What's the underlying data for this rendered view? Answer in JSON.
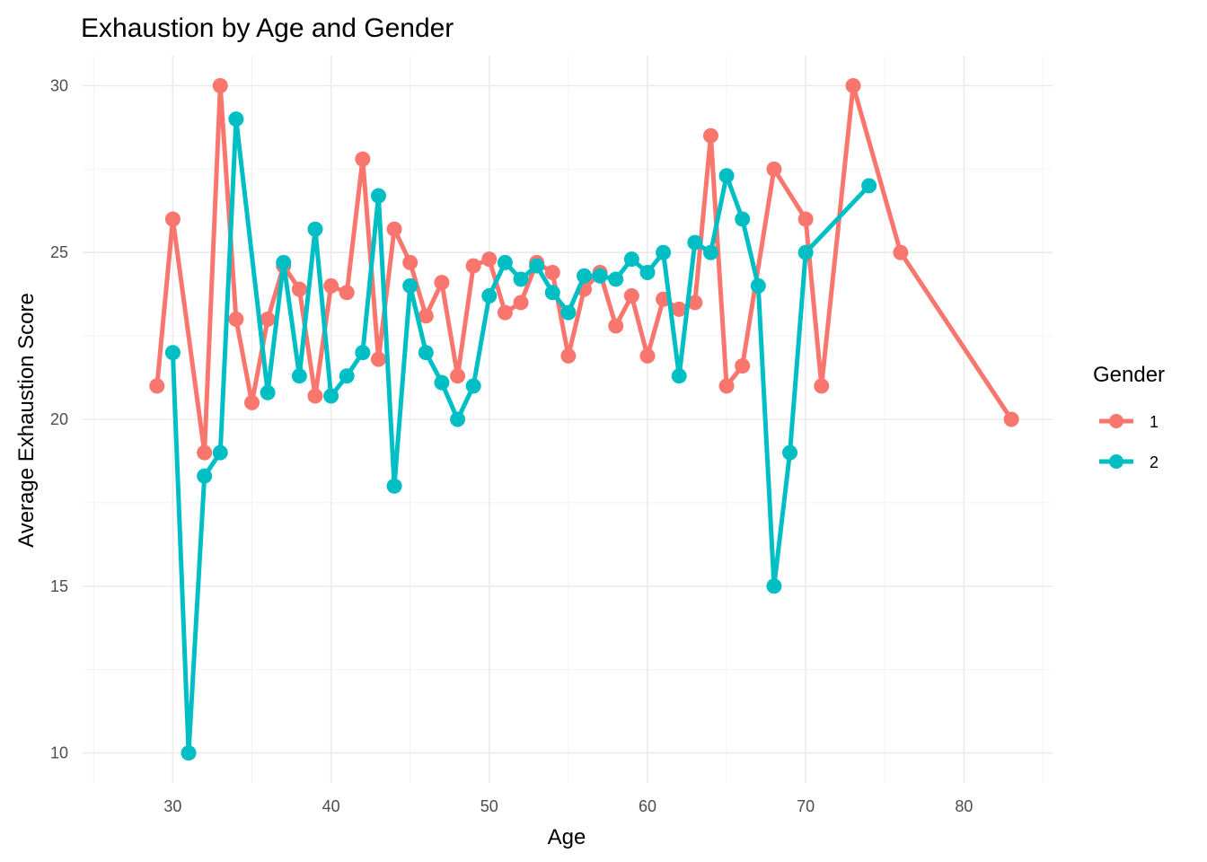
{
  "chart_data": {
    "type": "line",
    "title": "Exhaustion by Age and Gender",
    "xlabel": "Age",
    "ylabel": "Average Exhaustion Score",
    "xlim": [
      24.3,
      85.6
    ],
    "ylim": [
      9.1,
      30.9
    ],
    "x_ticks": [
      30,
      40,
      50,
      60,
      70,
      80
    ],
    "y_ticks": [
      10,
      15,
      20,
      25,
      30
    ],
    "grid": true,
    "legend": {
      "title": "Gender",
      "position": "right"
    },
    "series": [
      {
        "name": "1",
        "color": "#F8766D",
        "points": [
          [
            29,
            21
          ],
          [
            30,
            26
          ],
          [
            32,
            19
          ],
          [
            33,
            30
          ],
          [
            34,
            23
          ],
          [
            35,
            20.5
          ],
          [
            36,
            23
          ],
          [
            37,
            24.6
          ],
          [
            38,
            23.9
          ],
          [
            39,
            20.7
          ],
          [
            40,
            24
          ],
          [
            41,
            23.8
          ],
          [
            42,
            27.8
          ],
          [
            43,
            21.8
          ],
          [
            44,
            25.7
          ],
          [
            45,
            24.7
          ],
          [
            46,
            23.1
          ],
          [
            47,
            24.1
          ],
          [
            48,
            21.3
          ],
          [
            49,
            24.6
          ],
          [
            50,
            24.8
          ],
          [
            51,
            23.2
          ],
          [
            52,
            23.5
          ],
          [
            53,
            24.7
          ],
          [
            54,
            24.4
          ],
          [
            55,
            21.9
          ],
          [
            56,
            23.9
          ],
          [
            57,
            24.4
          ],
          [
            58,
            22.8
          ],
          [
            59,
            23.7
          ],
          [
            60,
            21.9
          ],
          [
            61,
            23.6
          ],
          [
            62,
            23.3
          ],
          [
            63,
            23.5
          ],
          [
            64,
            28.5
          ],
          [
            65,
            21
          ],
          [
            66,
            21.6
          ],
          [
            68,
            27.5
          ],
          [
            70,
            26
          ],
          [
            71,
            21
          ],
          [
            73,
            30
          ],
          [
            76,
            25
          ],
          [
            83,
            20
          ]
        ]
      },
      {
        "name": "2",
        "color": "#00BFC4",
        "points": [
          [
            30,
            22
          ],
          [
            31,
            10
          ],
          [
            32,
            18.3
          ],
          [
            33,
            19
          ],
          [
            34,
            29
          ],
          [
            36,
            20.8
          ],
          [
            37,
            24.7
          ],
          [
            38,
            21.3
          ],
          [
            39,
            25.7
          ],
          [
            40,
            20.7
          ],
          [
            41,
            21.3
          ],
          [
            42,
            22
          ],
          [
            43,
            26.7
          ],
          [
            44,
            18
          ],
          [
            45,
            24
          ],
          [
            46,
            22
          ],
          [
            47,
            21.1
          ],
          [
            48,
            20
          ],
          [
            49,
            21
          ],
          [
            50,
            23.7
          ],
          [
            51,
            24.7
          ],
          [
            52,
            24.2
          ],
          [
            53,
            24.6
          ],
          [
            54,
            23.8
          ],
          [
            55,
            23.2
          ],
          [
            56,
            24.3
          ],
          [
            57,
            24.3
          ],
          [
            58,
            24.2
          ],
          [
            59,
            24.8
          ],
          [
            60,
            24.4
          ],
          [
            61,
            25
          ],
          [
            62,
            21.3
          ],
          [
            63,
            25.3
          ],
          [
            64,
            25
          ],
          [
            65,
            27.3
          ],
          [
            66,
            26
          ],
          [
            67,
            24
          ],
          [
            68,
            15
          ],
          [
            69,
            19
          ],
          [
            70,
            25
          ],
          [
            74,
            27
          ]
        ]
      }
    ]
  }
}
